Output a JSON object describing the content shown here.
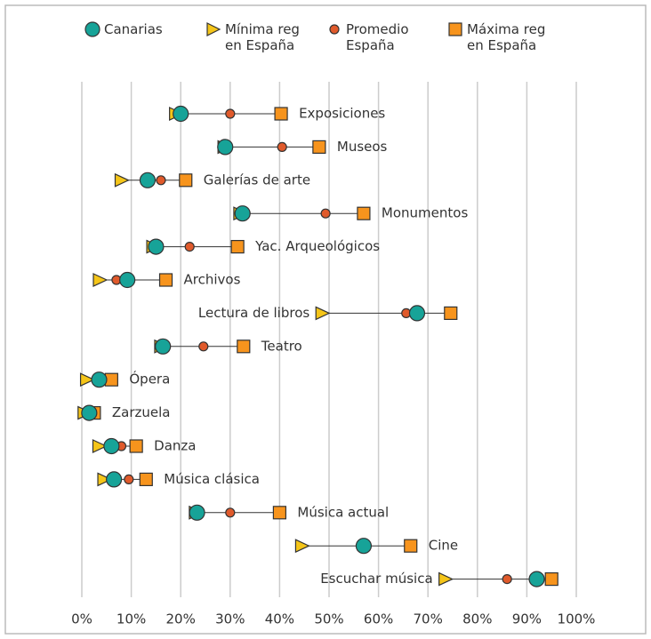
{
  "chart_data": {
    "type": "dot",
    "categories": [
      "Exposiciones",
      "Museos",
      "Galerías de arte",
      "Monumentos",
      "Yac. Arqueológicos",
      "Archivos",
      "Lectura de libros",
      "Teatro",
      "Ópera",
      "Zarzuela",
      "Danza",
      "Música clásica",
      "Música actual",
      "Cine",
      "Escuchar música"
    ],
    "series": [
      {
        "name": "Canarias",
        "color": "#17a398",
        "marker": "circle",
        "values": [
          20,
          29,
          13.3,
          32.5,
          15,
          9.2,
          67.8,
          16.4,
          3.5,
          1.5,
          6,
          6.5,
          23.3,
          57,
          92
        ]
      },
      {
        "name": "Mínima reg en España",
        "color": "#f5c518",
        "marker": "triangle",
        "values": [
          19,
          28.8,
          8,
          32,
          14.4,
          3.6,
          48.6,
          16,
          1,
          0.5,
          3.5,
          4.5,
          23,
          44.5,
          73.5
        ]
      },
      {
        "name": "Promedio España",
        "color": "#e05a2b",
        "marker": "dot",
        "values": [
          30,
          40.5,
          16,
          49.3,
          21.8,
          7,
          65.6,
          24.6,
          3.2,
          1,
          8,
          9.5,
          30,
          57.5,
          86
        ]
      },
      {
        "name": "Máxima reg en España",
        "color": "#f7941d",
        "marker": "square",
        "values": [
          40.3,
          48,
          21,
          57,
          31.5,
          17,
          74.6,
          32.7,
          6,
          2.5,
          11,
          13,
          40,
          66.5,
          95
        ]
      }
    ],
    "xlim": [
      0,
      100
    ],
    "xticks": [
      {
        "value": 0,
        "label": "0%"
      },
      {
        "value": 10,
        "label": "10%"
      },
      {
        "value": 20,
        "label": "20%"
      },
      {
        "value": 30,
        "label": "30%"
      },
      {
        "value": 40,
        "label": "40%"
      },
      {
        "value": 50,
        "label": "50%"
      },
      {
        "value": 60,
        "label": "60%"
      },
      {
        "value": 70,
        "label": "70%"
      },
      {
        "value": 80,
        "label": "80%"
      },
      {
        "value": 90,
        "label": "90%"
      },
      {
        "value": 100,
        "label": "100%"
      }
    ],
    "grid": true
  }
}
